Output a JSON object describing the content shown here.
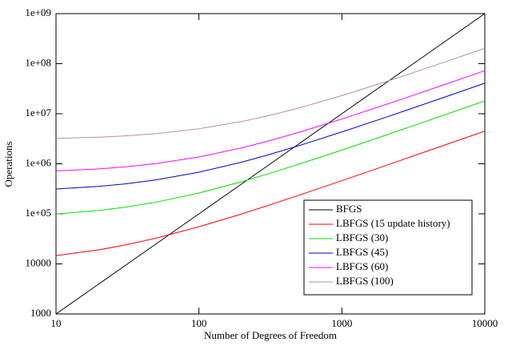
{
  "chart_data": {
    "type": "line",
    "xlabel": "Number of Degrees of Freedom",
    "ylabel": "Operations",
    "xscale": "log",
    "yscale": "log",
    "x": [
      10,
      20,
      30,
      50,
      100,
      200,
      300,
      500,
      1000,
      2000,
      3000,
      5000,
      10000
    ],
    "series": [
      {
        "name": "BFGS",
        "color": "#000000",
        "values": [
          1000,
          4000,
          9000,
          25000,
          100000,
          400000,
          900000,
          2500000,
          10000000,
          40000000,
          90000000,
          250000000,
          1000000000
        ]
      },
      {
        "name": "LBFGS (15 update history)",
        "color": "#ff0000",
        "values": [
          14625,
          19125,
          23625,
          32625,
          55125,
          100125,
          145125,
          235125,
          460125,
          910125,
          1360125,
          2260125,
          4510125
        ]
      },
      {
        "name": "LBFGS (30)",
        "color": "#00e000",
        "values": [
          99000,
          117000,
          135000,
          171000,
          261000,
          441000,
          621000,
          981000,
          1881000,
          3681000,
          5481000,
          9081000,
          18081000
        ]
      },
      {
        "name": "LBFGS (45)",
        "color": "#0000cc",
        "values": [
          313875,
          354375,
          394875,
          475875,
          678375,
          1083375,
          1488375,
          2298375,
          4323375,
          8373375,
          12423375,
          20523375,
          40773375
        ]
      },
      {
        "name": "LBFGS (60)",
        "color": "#ff00ff",
        "values": [
          720000,
          792000,
          864000,
          1008000,
          1368000,
          2088000,
          2808000,
          4248000,
          7848000,
          15048000,
          22248000,
          36648000,
          72648000
        ]
      },
      {
        "name": "LBFGS (100)",
        "color": "#bc8f8f",
        "values": [
          3200000,
          3400000,
          3600000,
          4000000,
          5000000,
          7000000,
          9000000,
          13000000,
          23000000,
          43000000,
          63000000,
          103000000,
          203000000
        ]
      }
    ],
    "xlim": [
      10,
      10000
    ],
    "ylim": [
      1000,
      1000000000
    ],
    "xticks": [
      10,
      100,
      1000,
      10000
    ],
    "yticks": [
      1000,
      10000,
      {
        "value": 100000,
        "label": "1e+05"
      },
      {
        "value": 1000000,
        "label": "1e+06"
      },
      {
        "value": 10000000,
        "label": "1e+07"
      },
      {
        "value": 100000000,
        "label": "1e+08"
      },
      {
        "value": 1000000000,
        "label": "1e+09"
      }
    ],
    "legend": "lower right"
  }
}
